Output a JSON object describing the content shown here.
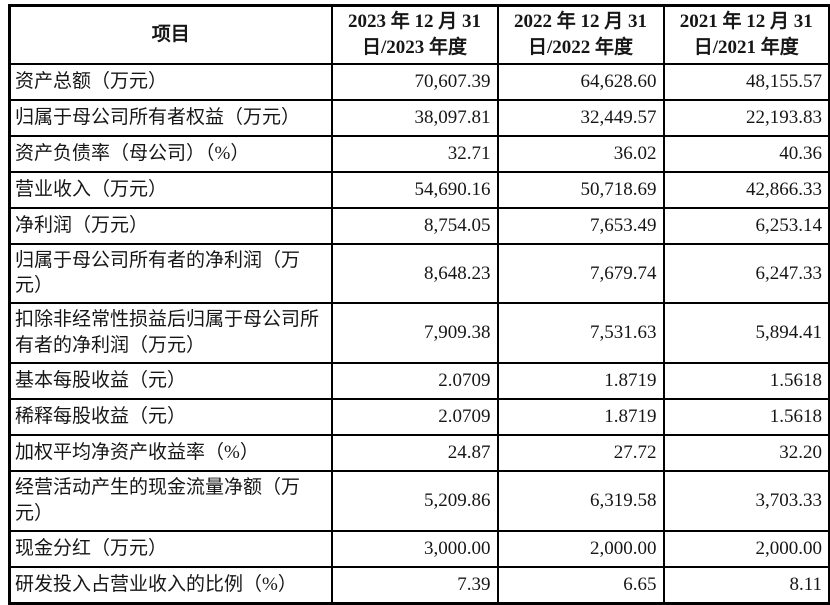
{
  "table": {
    "header": {
      "item_label": "项目",
      "columns": [
        {
          "line1": "2023 年 12 月 31",
          "line2": "日/2023 年度"
        },
        {
          "line1": "2022 年 12 月 31",
          "line2": "日/2022 年度"
        },
        {
          "line1": "2021 年 12 月 31",
          "line2": "日/2021 年度"
        }
      ]
    },
    "rows": [
      {
        "label": "资产总额（万元）",
        "values": [
          "70,607.39",
          "64,628.60",
          "48,155.57"
        ]
      },
      {
        "label": "归属于母公司所有者权益（万元）",
        "values": [
          "38,097.81",
          "32,449.57",
          "22,193.83"
        ]
      },
      {
        "label": "资产负债率（母公司）（%）",
        "values": [
          "32.71",
          "36.02",
          "40.36"
        ]
      },
      {
        "label": "营业收入（万元）",
        "values": [
          "54,690.16",
          "50,718.69",
          "42,866.33"
        ]
      },
      {
        "label": "净利润（万元）",
        "values": [
          "8,754.05",
          "7,653.49",
          "6,253.14"
        ]
      },
      {
        "label": "归属于母公司所有者的净利润（万元）",
        "values": [
          "8,648.23",
          "7,679.74",
          "6,247.33"
        ]
      },
      {
        "label": "扣除非经常性损益后归属于母公司所有者的净利润（万元）",
        "values": [
          "7,909.38",
          "7,531.63",
          "5,894.41"
        ]
      },
      {
        "label": "基本每股收益（元）",
        "values": [
          "2.0709",
          "1.8719",
          "1.5618"
        ]
      },
      {
        "label": "稀释每股收益（元）",
        "values": [
          "2.0709",
          "1.8719",
          "1.5618"
        ]
      },
      {
        "label": "加权平均净资产收益率（%）",
        "values": [
          "24.87",
          "27.72",
          "32.20"
        ]
      },
      {
        "label": "经营活动产生的现金流量净额（万元）",
        "values": [
          "5,209.86",
          "6,319.58",
          "3,703.33"
        ]
      },
      {
        "label": "现金分红（万元）",
        "values": [
          "3,000.00",
          "2,000.00",
          "2,000.00"
        ]
      },
      {
        "label": "研发投入占营业收入的比例（%）",
        "values": [
          "7.39",
          "6.65",
          "8.11"
        ]
      }
    ]
  }
}
